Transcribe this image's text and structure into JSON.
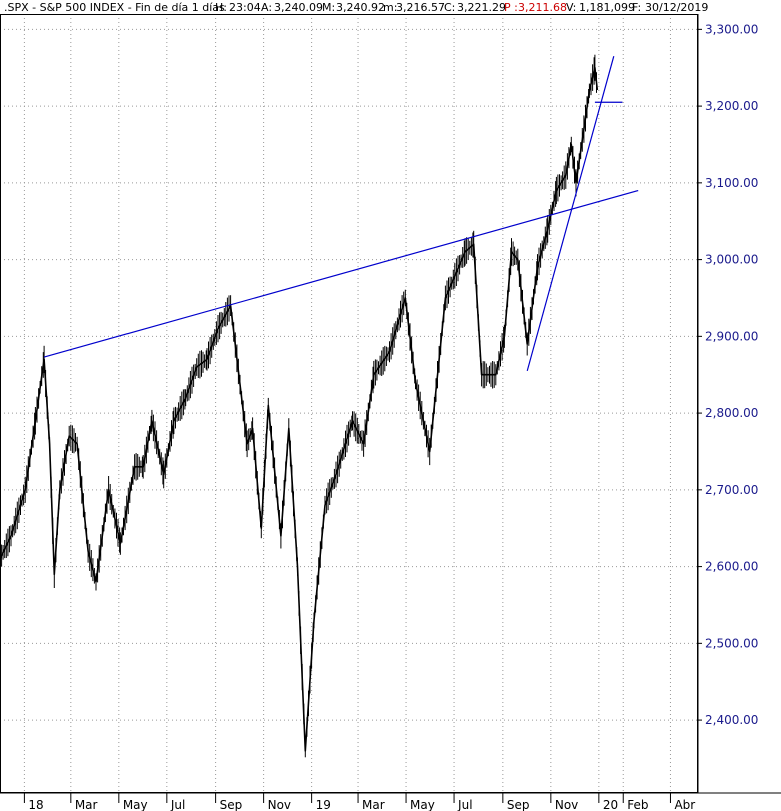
{
  "header": {
    "symbol": ".SPX - S&P 500 INDEX - Fin de día 1 días",
    "high_label": "H:",
    "high_value": "23:04",
    "open_label": "A:",
    "open_value": "3,240.09",
    "max_label": "M:",
    "max_value": "3,240.92",
    "min_label": "m:",
    "min_value": "3,216.57",
    "close_label": "C:",
    "close_value": "3,221.29",
    "price_label": "P :",
    "price_value": "3,211.68",
    "volume_label": "V:",
    "volume_value": "1,181,099",
    "date_label": "F:",
    "date_value": "30/12/2019"
  },
  "colors": {
    "candles": "#000000",
    "trendlines": "#0000cc",
    "axis_text": "#1a1a8c",
    "price_highlight": "#cc0000",
    "grid": "#999999"
  },
  "chart_data": {
    "type": "line",
    "title": "",
    "xlabel": "",
    "ylabel": "",
    "ylim": [
      2330,
      3300
    ],
    "y_ticks": [
      "3,300.00",
      "3,200.00",
      "3,100.00",
      "3,000.00",
      "2,900.00",
      "2,800.00",
      "2,700.00",
      "2,600.00",
      "2,500.00",
      "2,400.00"
    ],
    "y_tick_values": [
      3300,
      3200,
      3100,
      3000,
      2900,
      2800,
      2700,
      2600,
      2500,
      2400
    ],
    "x_ticks": [
      "18",
      "Mar",
      "May",
      "Jul",
      "Sep",
      "Nov",
      "19",
      "Mar",
      "May",
      "Jul",
      "Sep",
      "Nov",
      "20",
      "Feb",
      "Abr"
    ],
    "x_tick_dates": [
      "2018-01-01",
      "2018-03-01",
      "2018-05-01",
      "2018-07-01",
      "2018-09-01",
      "2018-11-01",
      "2019-01-01",
      "2019-03-01",
      "2019-05-01",
      "2019-07-01",
      "2019-09-01",
      "2019-11-01",
      "2020-01-01",
      "2020-02-01",
      "2020-04-01"
    ],
    "grid": true,
    "series": [
      {
        "x": [
          "2017-12-01",
          "2017-12-15",
          "2018-01-02",
          "2018-01-15",
          "2018-01-26",
          "2018-02-02",
          "2018-02-08",
          "2018-02-15",
          "2018-02-27",
          "2018-03-09",
          "2018-03-23",
          "2018-04-02",
          "2018-04-18",
          "2018-05-03",
          "2018-05-21",
          "2018-06-01",
          "2018-06-12",
          "2018-06-27",
          "2018-07-10",
          "2018-07-25",
          "2018-08-08",
          "2018-08-21",
          "2018-09-04",
          "2018-09-20",
          "2018-10-11",
          "2018-10-18",
          "2018-10-29",
          "2018-11-07",
          "2018-11-23",
          "2018-12-03",
          "2018-12-14",
          "2018-12-24",
          "2019-01-04",
          "2019-01-18",
          "2019-02-01",
          "2019-02-22",
          "2019-03-08",
          "2019-03-21",
          "2019-04-10",
          "2019-04-30",
          "2019-05-13",
          "2019-05-31",
          "2019-06-20",
          "2019-07-15",
          "2019-07-26",
          "2019-08-05",
          "2019-08-15",
          "2019-08-23",
          "2019-09-03",
          "2019-09-12",
          "2019-09-20",
          "2019-10-02",
          "2019-10-15",
          "2019-10-28",
          "2019-11-08",
          "2019-11-20",
          "2019-11-27",
          "2019-12-03",
          "2019-12-13",
          "2019-12-20",
          "2019-12-27",
          "2019-12-30"
        ],
        "close": [
          2610,
          2640,
          2700,
          2790,
          2870,
          2760,
          2590,
          2700,
          2770,
          2760,
          2620,
          2580,
          2700,
          2630,
          2730,
          2730,
          2790,
          2720,
          2790,
          2820,
          2860,
          2870,
          2910,
          2940,
          2760,
          2780,
          2650,
          2810,
          2640,
          2780,
          2600,
          2360,
          2530,
          2680,
          2720,
          2790,
          2760,
          2850,
          2880,
          2950,
          2840,
          2750,
          2950,
          3010,
          3020,
          2850,
          2850,
          2850,
          2900,
          3010,
          3000,
          2890,
          2990,
          3040,
          3090,
          3110,
          3150,
          3100,
          3170,
          3220,
          3250,
          3221
        ]
      }
    ],
    "trendlines": [
      {
        "x": [
          "2018-01-26",
          "2020-02-20"
        ],
        "y": [
          2873,
          3090
        ]
      },
      {
        "x": [
          "2019-10-02",
          "2020-01-20"
        ],
        "y": [
          2855,
          3265
        ]
      },
      {
        "x": [
          "2019-12-27",
          "2020-01-31"
        ],
        "y": [
          3205,
          3205
        ]
      }
    ]
  }
}
